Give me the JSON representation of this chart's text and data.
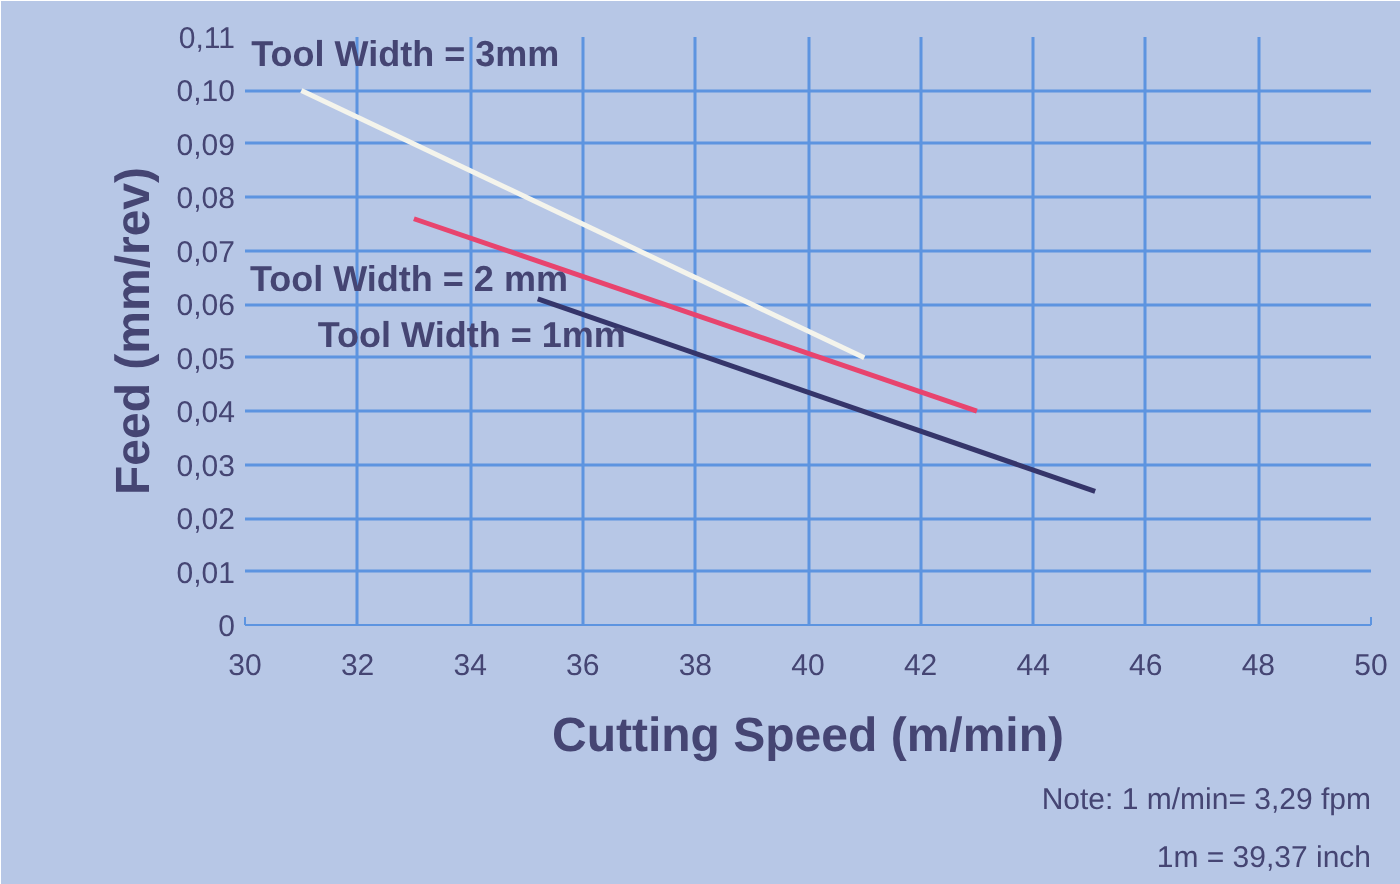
{
  "chart_data": {
    "type": "line",
    "xlabel": "Cutting Speed (m/min)",
    "ylabel": "Feed (mm/rev)",
    "xlim": [
      30,
      50
    ],
    "xticks": [
      30,
      32,
      34,
      36,
      38,
      40,
      42,
      44,
      46,
      48,
      50
    ],
    "ylim": [
      0,
      0.11
    ],
    "yticks": [
      {
        "value": 0,
        "label": "0"
      },
      {
        "value": 0.01,
        "label": "0,01"
      },
      {
        "value": 0.02,
        "label": "0,02"
      },
      {
        "value": 0.03,
        "label": "0,03"
      },
      {
        "value": 0.04,
        "label": "0,04"
      },
      {
        "value": 0.05,
        "label": "0,05"
      },
      {
        "value": 0.06,
        "label": "0,06"
      },
      {
        "value": 0.07,
        "label": "0,07"
      },
      {
        "value": 0.08,
        "label": "0,08"
      },
      {
        "value": 0.09,
        "label": "0,09"
      },
      {
        "value": 0.1,
        "label": "0,10"
      },
      {
        "value": 0.11,
        "label": "0,11"
      }
    ],
    "grid": true,
    "legend": false,
    "marker": "none",
    "line_style": "solid",
    "series": [
      {
        "name": "Tool Width = 3mm",
        "color": "#f4f4ec",
        "x": [
          31.0,
          41.0
        ],
        "values": [
          0.1,
          0.05
        ]
      },
      {
        "name": "Tool Width = 2 mm",
        "color": "#e8446e",
        "x": [
          33.0,
          43.0
        ],
        "values": [
          0.076,
          0.04
        ]
      },
      {
        "name": "Tool Width = 1mm",
        "color": "#35356a",
        "x": [
          35.2,
          45.1
        ],
        "values": [
          0.061,
          0.025
        ]
      }
    ],
    "annotations": [
      "Note: 1 m/min= 3,29 fpm",
      "1m = 39,37 inch"
    ]
  }
}
